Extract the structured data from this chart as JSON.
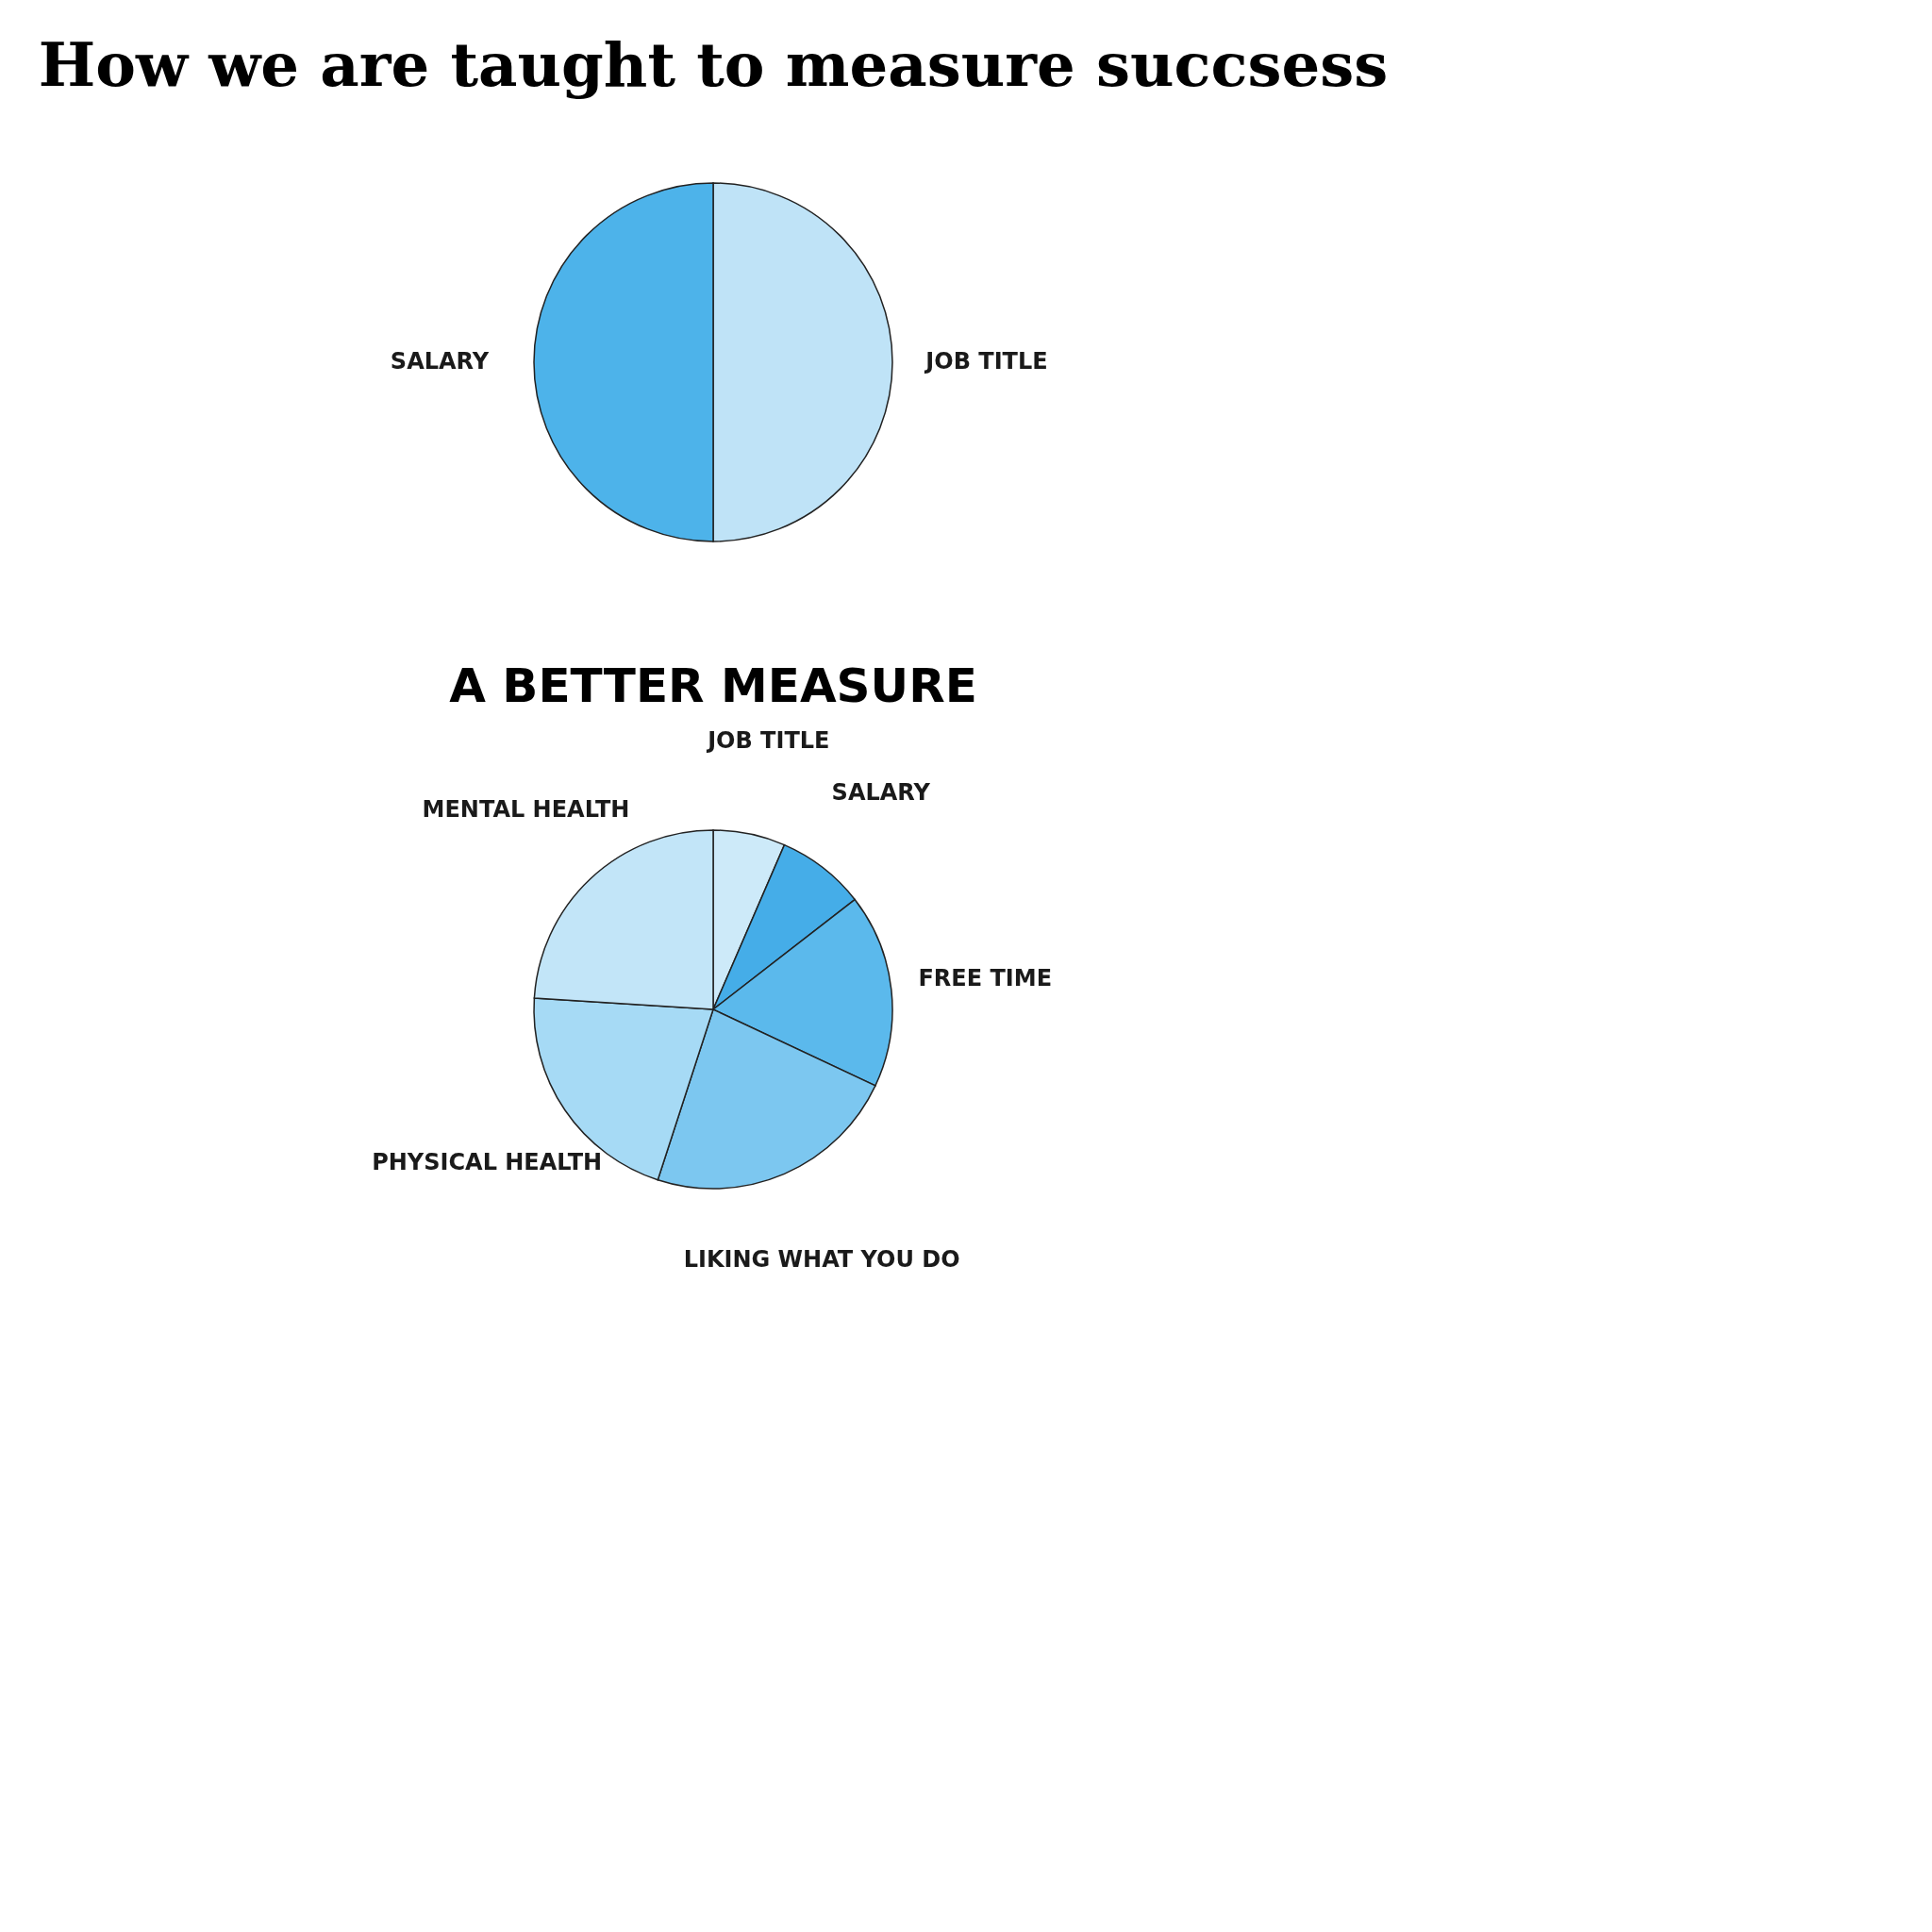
{
  "chart_data": [
    {
      "type": "pie",
      "title": "How we are taught to measure succsess",
      "categories": [
        "JOB TITLE",
        "SALARY"
      ],
      "values": [
        50,
        50
      ],
      "colors": [
        "#bfe3f7",
        "#4db3ea"
      ],
      "legend": false
    },
    {
      "type": "pie",
      "title": "A BETTER MEASURE",
      "categories": [
        "JOB TITLE",
        "SALARY",
        "FREE TIME",
        "LIKING WHAT YOU DO",
        "PHYSICAL HEALTH",
        "MENTAL HEALTH"
      ],
      "values": [
        6.5,
        8,
        17.5,
        23,
        21,
        24
      ],
      "colors": [
        "#cdeaf9",
        "#45ade8",
        "#5bb9ec",
        "#7cc7f0",
        "#a6daf5",
        "#c2e5f8"
      ],
      "legend": false
    }
  ]
}
